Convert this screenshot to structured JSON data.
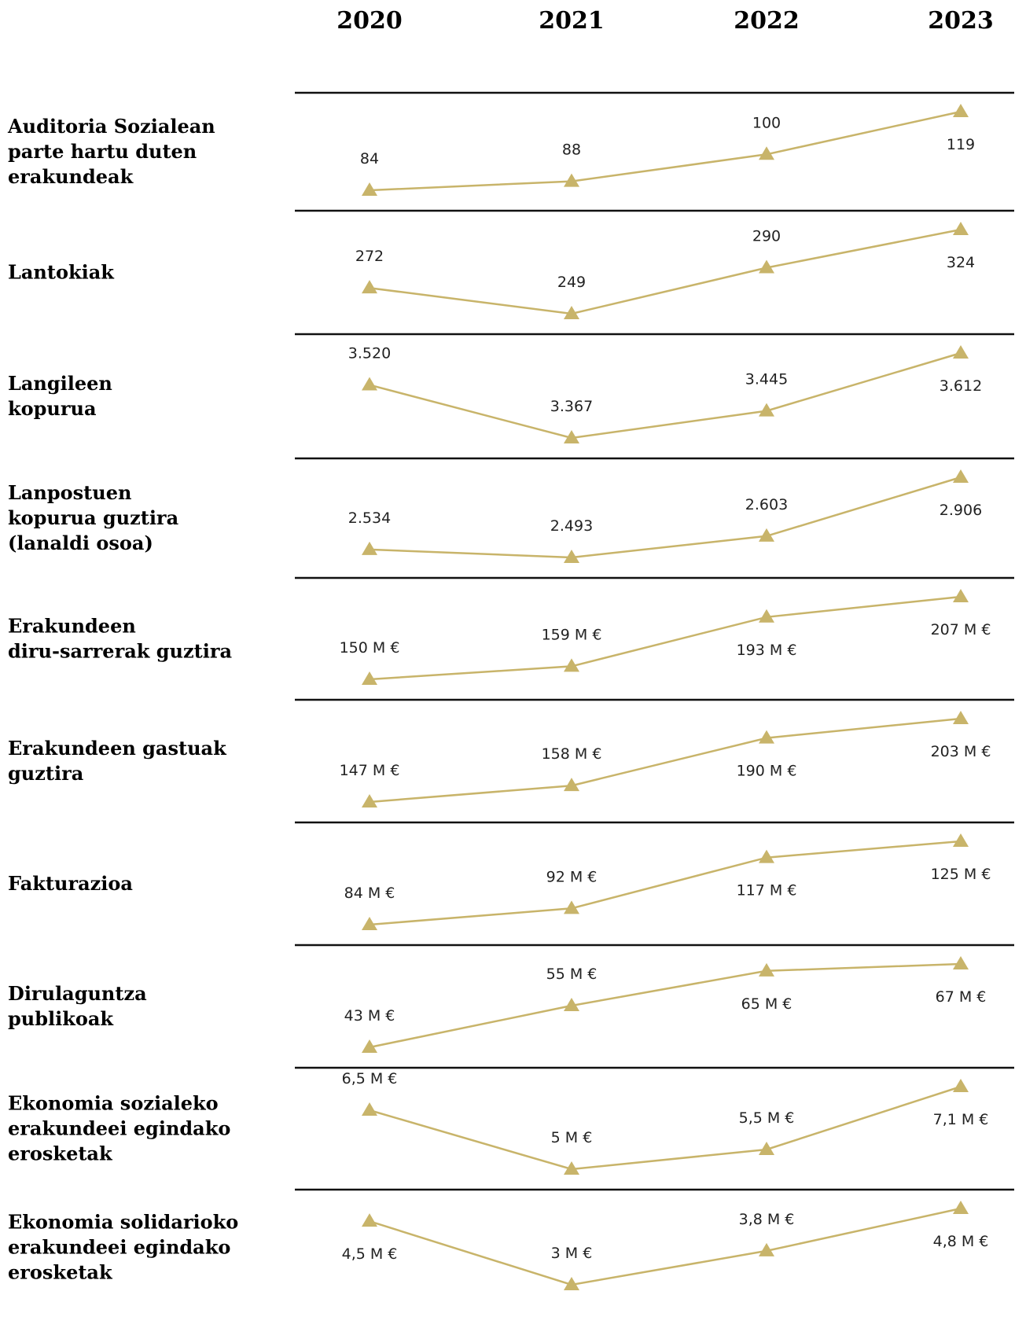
{
  "chart_data": {
    "type": "line",
    "x": [
      "2020",
      "2021",
      "2022",
      "2023"
    ],
    "marker": "triangle",
    "colors": {
      "line": "#c8b46a",
      "separator": "#111111",
      "text": "#000000"
    },
    "series": [
      {
        "name": "Auditoria Sozialean parte hartu duten erakundeak",
        "lines": [
          "Auditoria Sozialean",
          "parte hartu duten",
          "erakundeak"
        ],
        "values": [
          84,
          88,
          100,
          119
        ],
        "labels": [
          "84",
          "88",
          "100",
          "119"
        ]
      },
      {
        "name": "Lantokiak",
        "lines": [
          "Lantokiak"
        ],
        "values": [
          272,
          249,
          290,
          324
        ],
        "labels": [
          "272",
          "249",
          "290",
          "324"
        ]
      },
      {
        "name": "Langileen kopurua",
        "lines": [
          "Langileen",
          "kopurua"
        ],
        "values": [
          3520,
          3367,
          3445,
          3612
        ],
        "labels": [
          "3.520",
          "3.367",
          "3.445",
          "3.612"
        ]
      },
      {
        "name": "Lanpostuen kopurua guztira (lanaldi osoa)",
        "lines": [
          "Lanpostuen",
          "kopurua guztira",
          "(lanaldi osoa)"
        ],
        "values": [
          2534,
          2493,
          2603,
          2906
        ],
        "labels": [
          "2.534",
          "2.493",
          "2.603",
          "2.906"
        ]
      },
      {
        "name": "Erakundeen diru-sarrerak guztira",
        "lines": [
          "Erakundeen",
          "diru-sarrerak guztira"
        ],
        "values": [
          150,
          159,
          193,
          207
        ],
        "labels": [
          "150 M €",
          "159 M €",
          "193 M €",
          "207 M €"
        ]
      },
      {
        "name": "Erakundeen gastuak guztira",
        "lines": [
          "Erakundeen gastuak",
          "guztira"
        ],
        "values": [
          147,
          158,
          190,
          203
        ],
        "labels": [
          "147 M €",
          "158 M €",
          "190 M €",
          "203 M €"
        ]
      },
      {
        "name": "Fakturazioa",
        "lines": [
          "Fakturazioa"
        ],
        "values": [
          84,
          92,
          117,
          125
        ],
        "labels": [
          "84 M €",
          "92 M €",
          "117 M €",
          "125 M €"
        ]
      },
      {
        "name": "Dirulaguntza publikoak",
        "lines": [
          "Dirulaguntza",
          "publikoak"
        ],
        "values": [
          43,
          55,
          65,
          67
        ],
        "labels": [
          "43 M €",
          "55 M €",
          "65 M €",
          "67 M €"
        ]
      },
      {
        "name": "Ekonomia sozialeko erakundeei egindako erosketak",
        "lines": [
          "Ekonomia sozialeko",
          "erakundeei egindako",
          "erosketak"
        ],
        "values": [
          6.5,
          5,
          5.5,
          7.1
        ],
        "labels": [
          "6,5 M €",
          "5 M €",
          "5,5 M €",
          "7,1 M €"
        ]
      },
      {
        "name": "Ekonomia solidarioko erakundeei egindako erosketak",
        "lines": [
          "Ekonomia solidarioko",
          "erakundeei egindako",
          "erosketak"
        ],
        "values": [
          4.5,
          3,
          3.8,
          4.8
        ],
        "labels": [
          "4,5 M €",
          "3 M €",
          "3,8 M €",
          "4,8 M €"
        ]
      }
    ]
  }
}
